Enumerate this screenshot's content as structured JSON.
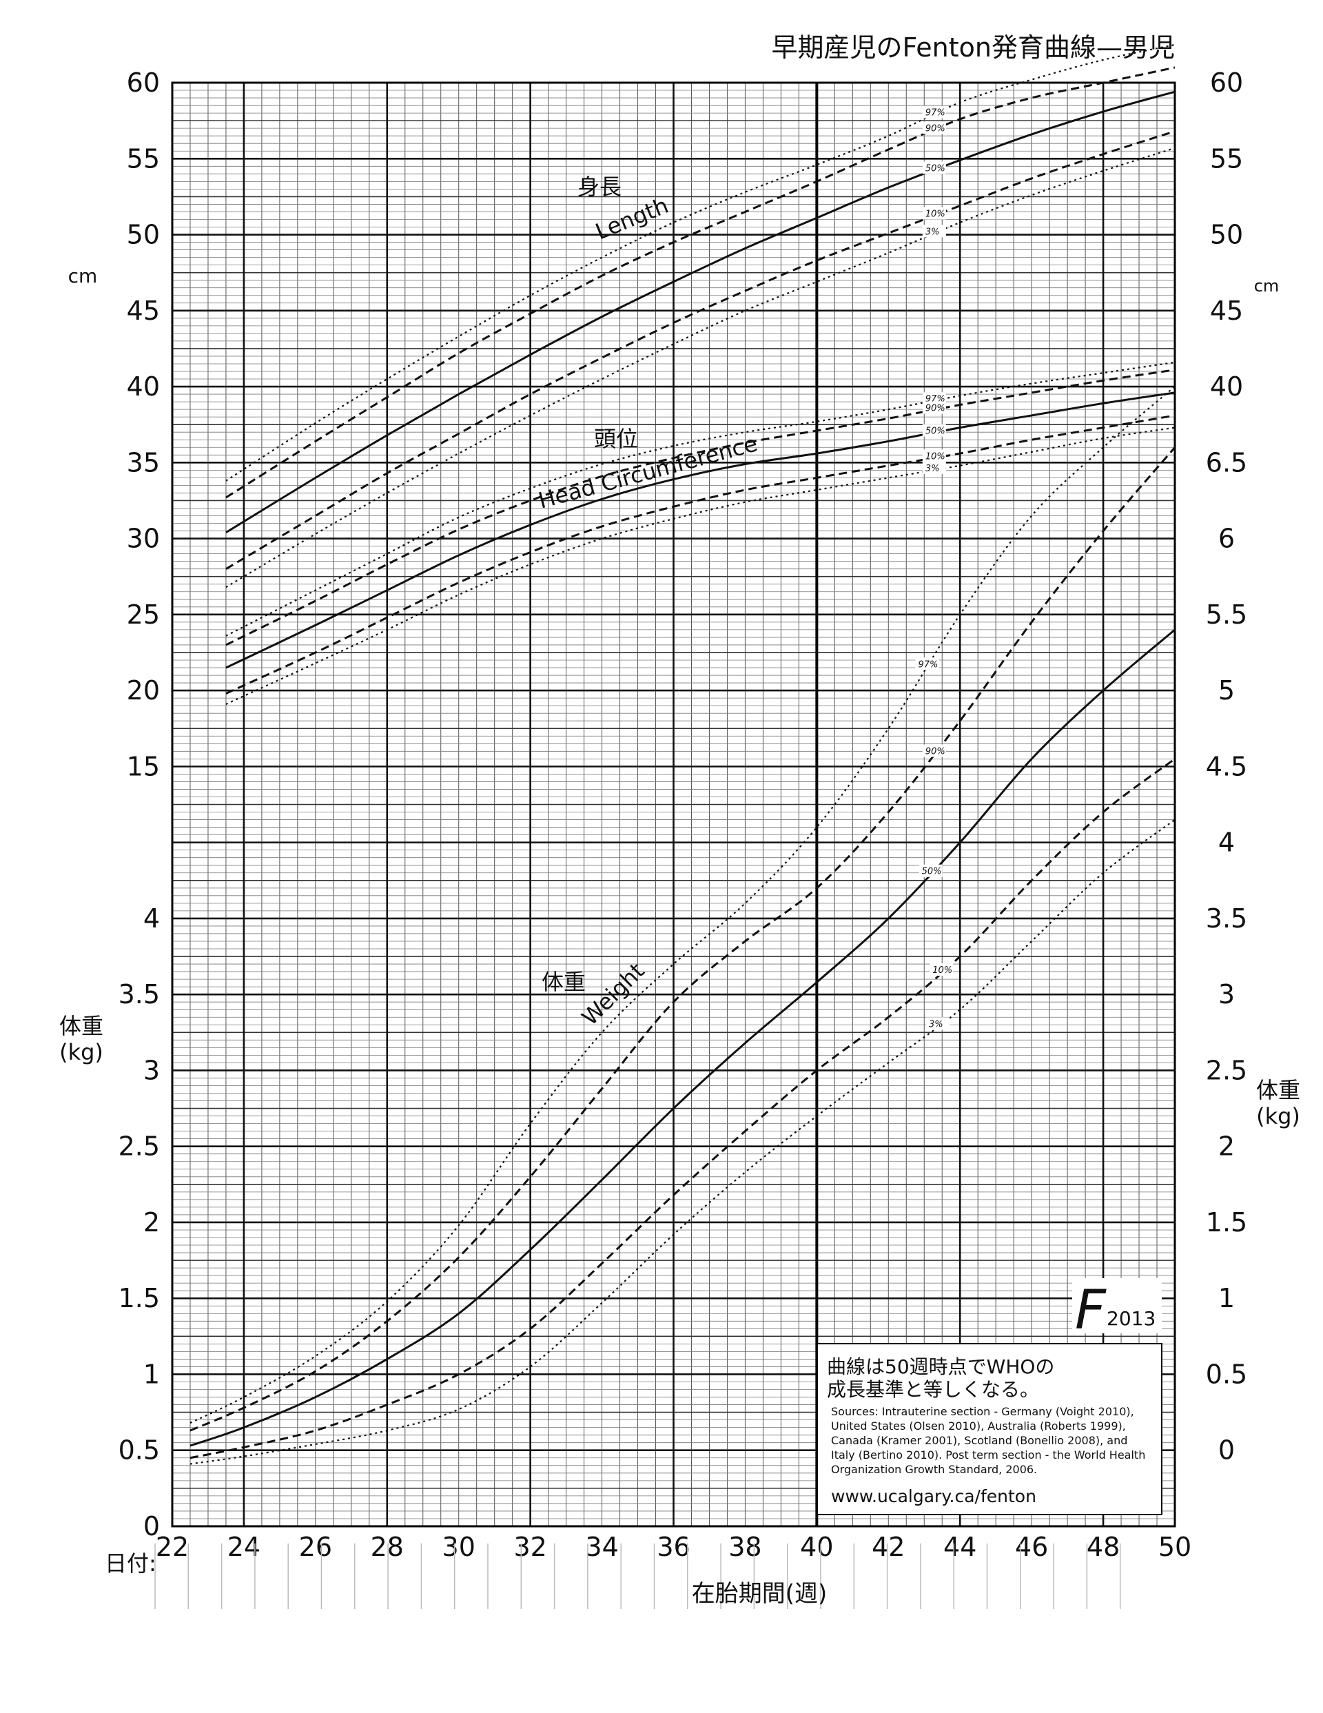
{
  "chart_data": {
    "type": "line",
    "title": "早期産児のFenton発育曲線—男児",
    "xlabel": "在胎期間(週)",
    "x_ticks": [
      "22",
      "24",
      "26",
      "28",
      "30",
      "32",
      "34",
      "36",
      "38",
      "40",
      "42",
      "44",
      "46",
      "48",
      "50"
    ],
    "xlim": [
      22,
      50
    ],
    "date_label": "日付:",
    "left_axis": {
      "unit": "cm",
      "weight_label": "体重\n(kg)",
      "ticks_cm": [
        "60",
        "55",
        "50",
        "45",
        "40",
        "35",
        "30",
        "25",
        "20",
        "15"
      ],
      "ticks_kg": [
        "4",
        "3.5",
        "3",
        "2.5",
        "2",
        "1.5",
        "1",
        "0.5",
        "0"
      ]
    },
    "right_axis": {
      "unit": "cm",
      "weight_label": "体重\n(kg)",
      "ticks_cm": [
        "60",
        "55",
        "50",
        "45",
        "40"
      ],
      "ticks_kg": [
        "6.5",
        "6",
        "5.5",
        "5",
        "4.5",
        "4",
        "3.5",
        "3",
        "2.5",
        "2",
        "1.5",
        "1",
        "0.5",
        "0"
      ]
    },
    "grid": true,
    "curve_labels": {
      "length": {
        "ja": "身長",
        "en": "Length"
      },
      "head": {
        "ja": "頭位",
        "en": "Head Circumference"
      },
      "weight": {
        "ja": "体重",
        "en": "Weight"
      }
    },
    "percentile_labels": {
      "length": [
        "97",
        "90",
        "50",
        "10",
        "3"
      ],
      "head": [
        "97",
        "90",
        "50",
        "10",
        "3"
      ],
      "weight": [
        "97",
        "90",
        "50",
        "10",
        "3"
      ]
    },
    "length_cm": {
      "x": [
        23.5,
        26,
        28,
        30,
        32,
        34,
        36,
        38,
        40,
        42,
        44,
        46,
        48,
        50
      ],
      "series": [
        {
          "name": "97",
          "style": "dotted",
          "values": [
            33.8,
            37.6,
            40.5,
            43.3,
            46.0,
            48.5,
            50.8,
            52.8,
            54.6,
            56.5,
            58.7,
            60.2,
            61.5,
            62.5
          ]
        },
        {
          "name": "90",
          "style": "dashed",
          "values": [
            32.7,
            36.4,
            39.3,
            42.2,
            44.8,
            47.3,
            49.5,
            51.5,
            53.5,
            55.6,
            57.6,
            59.0,
            60.0,
            61.0
          ]
        },
        {
          "name": "50",
          "style": "solid",
          "values": [
            30.4,
            34.0,
            36.8,
            39.5,
            42.1,
            44.6,
            46.9,
            49.1,
            51.1,
            53.1,
            54.9,
            56.6,
            58.1,
            59.4
          ]
        },
        {
          "name": "10",
          "style": "dashed",
          "values": [
            28.0,
            31.5,
            34.3,
            36.9,
            39.5,
            41.9,
            44.2,
            46.3,
            48.3,
            50.1,
            51.9,
            53.7,
            55.3,
            56.8
          ]
        },
        {
          "name": "3",
          "style": "dotted",
          "values": [
            26.8,
            30.3,
            33.0,
            35.6,
            38.1,
            40.5,
            42.8,
            45.0,
            46.9,
            48.8,
            50.8,
            52.6,
            54.2,
            55.7
          ]
        }
      ]
    },
    "head_circumference_cm": {
      "x": [
        23.5,
        26,
        28,
        30,
        32,
        34,
        36,
        38,
        40,
        42,
        44,
        46,
        48,
        50
      ],
      "series": [
        {
          "name": "97",
          "style": "dotted",
          "values": [
            23.6,
            26.6,
            29.0,
            31.4,
            33.3,
            34.9,
            36.1,
            37.0,
            37.7,
            38.5,
            39.4,
            40.2,
            40.9,
            41.6
          ]
        },
        {
          "name": "90",
          "style": "dashed",
          "values": [
            23.0,
            25.9,
            28.3,
            30.6,
            32.5,
            34.1,
            35.3,
            36.3,
            37.1,
            37.9,
            38.8,
            39.6,
            40.4,
            41.1
          ]
        },
        {
          "name": "50",
          "style": "solid",
          "values": [
            21.5,
            24.3,
            26.6,
            28.9,
            30.9,
            32.6,
            33.9,
            34.9,
            35.6,
            36.4,
            37.3,
            38.1,
            38.9,
            39.6
          ]
        },
        {
          "name": "10",
          "style": "dashed",
          "values": [
            19.8,
            22.5,
            24.8,
            27.1,
            29.1,
            30.8,
            32.1,
            33.2,
            34.0,
            34.8,
            35.6,
            36.5,
            37.3,
            38.1
          ]
        },
        {
          "name": "3",
          "style": "dotted",
          "values": [
            19.1,
            21.8,
            24.0,
            26.3,
            28.3,
            30.0,
            31.3,
            32.4,
            33.2,
            34.0,
            34.8,
            35.7,
            36.6,
            37.3
          ]
        }
      ]
    },
    "weight_kg": {
      "x": [
        22.5,
        24,
        26,
        28,
        30,
        32,
        34,
        36,
        38,
        40,
        42,
        44,
        46,
        48,
        50
      ],
      "series": [
        {
          "name": "97",
          "style": "dotted",
          "values": [
            0.68,
            0.85,
            1.12,
            1.48,
            1.98,
            2.65,
            3.25,
            3.7,
            4.1,
            4.6,
            5.25,
            6.0,
            6.65,
            7.1,
            7.5
          ]
        },
        {
          "name": "90",
          "style": "dashed",
          "values": [
            0.63,
            0.78,
            1.02,
            1.35,
            1.77,
            2.3,
            2.88,
            3.45,
            3.85,
            4.2,
            4.7,
            5.3,
            5.95,
            6.55,
            7.1
          ]
        },
        {
          "name": "50",
          "style": "solid",
          "values": [
            0.53,
            0.65,
            0.85,
            1.1,
            1.4,
            1.82,
            2.28,
            2.75,
            3.18,
            3.58,
            4.0,
            4.5,
            5.05,
            5.5,
            5.9
          ]
        },
        {
          "name": "10",
          "style": "dashed",
          "values": [
            0.45,
            0.52,
            0.63,
            0.8,
            1.0,
            1.3,
            1.73,
            2.18,
            2.6,
            3.0,
            3.35,
            3.75,
            4.25,
            4.7,
            5.05
          ]
        },
        {
          "name": "3",
          "style": "dotted",
          "values": [
            0.41,
            0.46,
            0.54,
            0.63,
            0.77,
            1.05,
            1.47,
            1.92,
            2.33,
            2.7,
            3.05,
            3.4,
            3.85,
            4.3,
            4.65
          ]
        }
      ]
    },
    "logo_text": "2013",
    "note": {
      "line1": "曲線は50週時点でWHOの",
      "line2": "成長基準と等しくなる。",
      "sources": [
        "Sources: Intrauterine section - Germany (Voight 2010),",
        "United States (Olsen 2010), Australia (Roberts 1999),",
        "Canada (Kramer 2001), Scotland (Bonellio 2008), and",
        "Italy (Bertino 2010). Post term section - the World Health",
        "Organization Growth Standard, 2006."
      ],
      "url": "www.ucalgary.ca/fenton"
    }
  }
}
